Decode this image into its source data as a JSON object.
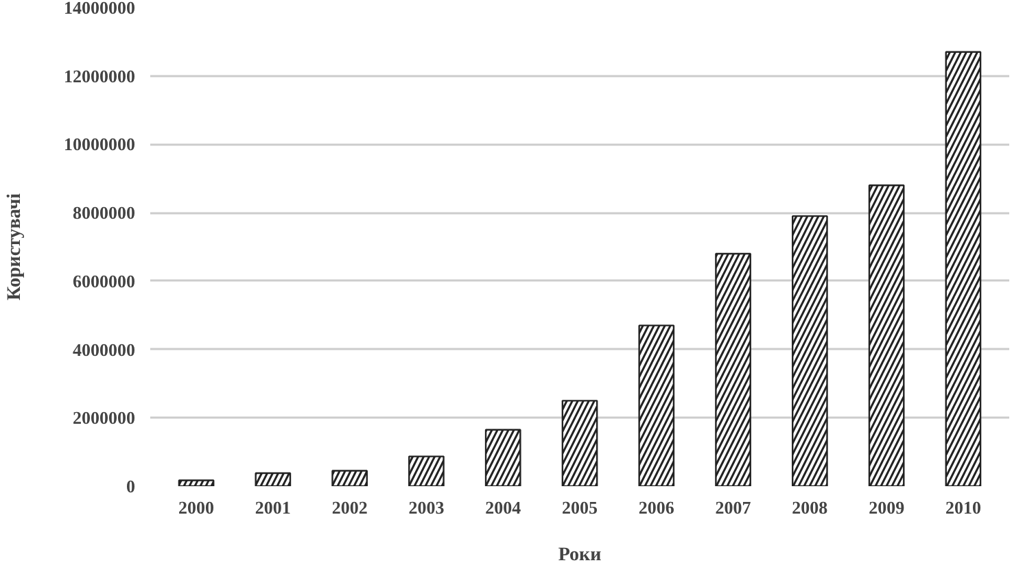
{
  "chart_data": {
    "type": "bar",
    "xlabel": "Роки",
    "ylabel": "Користувачі",
    "categories": [
      "2000",
      "2001",
      "2002",
      "2003",
      "2004",
      "2005",
      "2006",
      "2007",
      "2008",
      "2009",
      "2010"
    ],
    "values": [
      170000,
      380000,
      450000,
      870000,
      1650000,
      2500000,
      4700000,
      6800000,
      7900000,
      8800000,
      12700000
    ],
    "color": "#ffffff",
    "ylim": [
      0,
      14000000
    ],
    "yticks": [
      0,
      2000000,
      4000000,
      6000000,
      8000000,
      10000000,
      12000000,
      14000000
    ],
    "grid": "y"
  }
}
